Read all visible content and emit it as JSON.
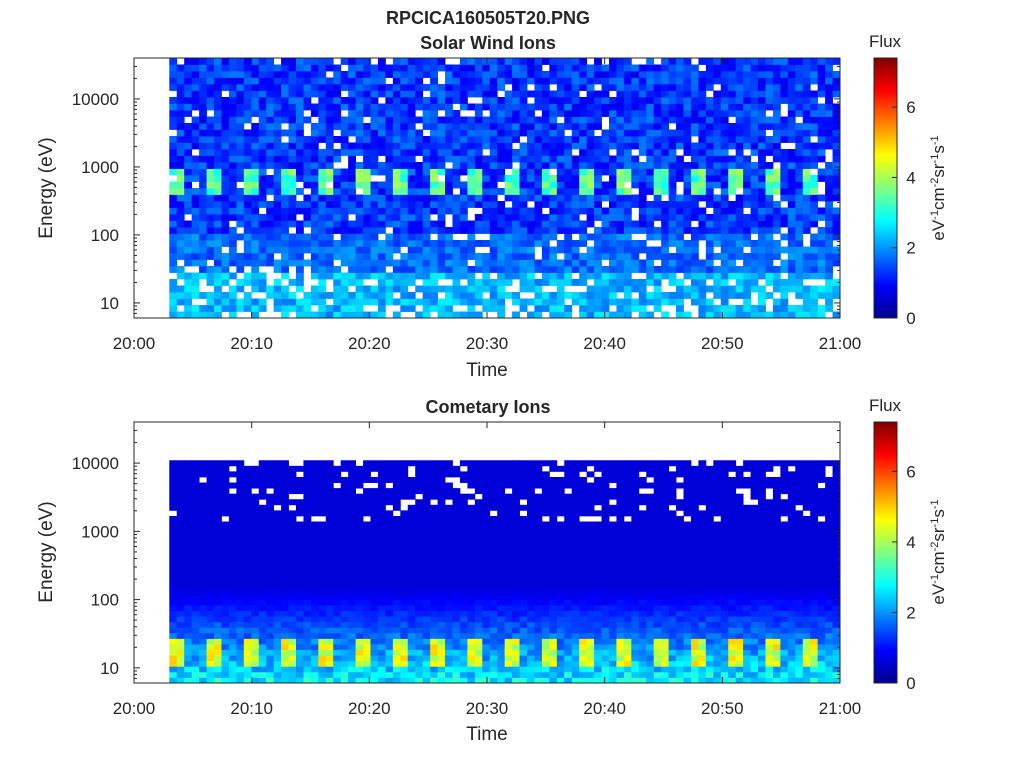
{
  "figure_title": "RPCICA160505T20.PNG",
  "chart_data": [
    {
      "type": "heatmap",
      "title": "Solar Wind Ions",
      "xlabel": "Time",
      "ylabel": "Energy (eV)",
      "y_scale": "log",
      "ylim": [
        6,
        40000
      ],
      "xlim": [
        "20:00",
        "21:00"
      ],
      "x_ticks": [
        "20:00",
        "20:10",
        "20:20",
        "20:30",
        "20:40",
        "20:50",
        "21:00"
      ],
      "y_ticks": [
        "10",
        "100",
        "1000",
        "10000"
      ],
      "data_start": "20:03",
      "data_end": "21:00",
      "spectrum_note": "broad background 1-2 across energies; enhanced band near 600 eV reaching ~4 in periodic bursts",
      "band_energy_eV": 600,
      "band_peak_value": 4,
      "background_value": 1.3,
      "colorbar": {
        "label": "Flux",
        "unit_label": "eV-1cm-2sr-1s-1",
        "range": [
          0,
          7.4
        ],
        "ticks": [
          "0",
          "2",
          "4",
          "6"
        ],
        "colormap": [
          "#00008f",
          "#0000ff",
          "#00ffff",
          "#ffff00",
          "#ff0000",
          "#800000"
        ]
      }
    },
    {
      "type": "heatmap",
      "title": "Cometary Ions",
      "xlabel": "Time",
      "ylabel": "Energy (eV)",
      "y_scale": "log",
      "ylim": [
        6,
        40000
      ],
      "xlim": [
        "20:00",
        "21:00"
      ],
      "x_ticks": [
        "20:00",
        "20:10",
        "20:20",
        "20:30",
        "20:40",
        "20:50",
        "21:00"
      ],
      "y_ticks": [
        "10",
        "100",
        "1000",
        "10000"
      ],
      "data_start": "20:03",
      "data_end": "21:00",
      "spectrum_note": "flux ~0.5 above 1000 eV rising to ~3-5 below 30 eV; periodic peaks near 15 eV",
      "band_energy_eV": 15,
      "band_peak_value": 5,
      "background_value": 0.6,
      "colorbar": {
        "label": "Flux",
        "unit_label": "eV-1cm-2sr-1s-1",
        "range": [
          0,
          7.4
        ],
        "ticks": [
          "0",
          "2",
          "4",
          "6"
        ],
        "colormap": [
          "#00008f",
          "#0000ff",
          "#00ffff",
          "#ffff00",
          "#ff0000",
          "#800000"
        ]
      }
    }
  ]
}
